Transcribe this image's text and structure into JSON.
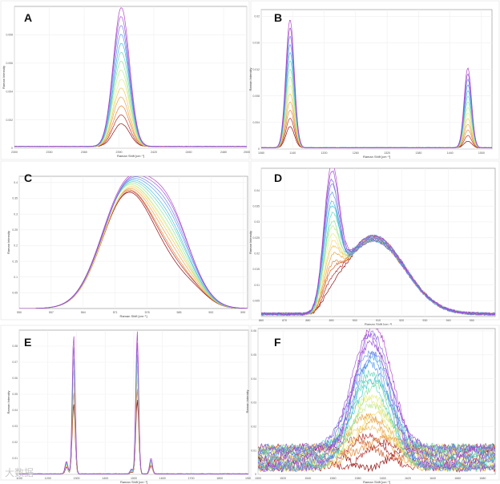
{
  "figure": {
    "palette": [
      "#8b0000",
      "#b22222",
      "#cd5c2c",
      "#e0802a",
      "#e8a040",
      "#f0c35a",
      "#f3dd74",
      "#e5ec7e",
      "#bfe98a",
      "#8fe0a0",
      "#5fd6b8",
      "#3ec8cf",
      "#41b5e0",
      "#5a98e8",
      "#6f7de6",
      "#8466e0",
      "#9a52d6",
      "#b03ec8"
    ],
    "watermark": "大数据"
  },
  "chart_data": [
    {
      "id": "panel-a",
      "label": "A",
      "type": "line",
      "xlabel": "Raman Shift [cm⁻¹]",
      "ylabel": "Raman Intensity",
      "xlim": [
        2300,
        2500
      ],
      "ylim": [
        0,
        0.01
      ],
      "xticks": [
        "2300",
        "2330",
        "2360",
        "2390",
        "2420",
        "2450",
        "2480",
        "2500"
      ],
      "yticks": [
        "0",
        "0.002",
        "0.004",
        "0.006",
        "0.008"
      ],
      "n_series": 14,
      "peaks": [
        {
          "center": 2392,
          "width": 7,
          "min": 0.0016,
          "max": 0.0098
        }
      ],
      "baseline": 0.00012
    },
    {
      "id": "panel-b",
      "label": "B",
      "type": "line",
      "xlabel": "Raman Shift [cm⁻¹]",
      "ylabel": "Raman Intensity",
      "xlim": [
        1080,
        1520
      ],
      "ylim": [
        0,
        0.021
      ],
      "xticks": [
        "1080",
        "1140",
        "1200",
        "1260",
        "1320",
        "1380",
        "1440",
        "1500"
      ],
      "yticks": [
        "0",
        "0.004",
        "0.008",
        "0.012",
        "0.016",
        "0.02"
      ],
      "n_series": 14,
      "peaks": [
        {
          "center": 1135,
          "width": 8,
          "min": 0.0032,
          "max": 0.0193
        },
        {
          "center": 1474,
          "width": 7,
          "min": 0.001,
          "max": 0.012
        }
      ],
      "baseline": 0.0002
    },
    {
      "id": "panel-c",
      "label": "C",
      "type": "line",
      "xlabel": "Raman Shift [cm⁻¹]",
      "ylabel": "Raman Intensity",
      "xlim": [
        550,
        600
      ],
      "ylim": [
        0,
        0.42
      ],
      "xticks": [
        "550",
        "557",
        "564",
        "571",
        "578",
        "585",
        "592",
        "599"
      ],
      "yticks": [
        "0.05",
        "0.1",
        "0.15",
        "0.2",
        "0.25",
        "0.3",
        "0.35",
        "0.4"
      ],
      "n_series": 14,
      "peaks": [
        {
          "center": 573.5,
          "width": 5.5,
          "min": 0.355,
          "max": 0.375
        },
        {
          "center": 583,
          "width": 4.8,
          "min": 0.09,
          "max": 0.265
        }
      ],
      "baseline": 0.0
    },
    {
      "id": "panel-d",
      "label": "D",
      "type": "line",
      "xlabel": "Raman Shift [cm⁻¹]",
      "ylabel": "Raman Intensity",
      "xlim": [
        860,
        960
      ],
      "ylim": [
        0,
        0.047
      ],
      "xticks": [
        "860",
        "870",
        "880",
        "890",
        "900",
        "910",
        "920",
        "930",
        "940",
        "950"
      ],
      "yticks": [
        "0.005",
        "0.01",
        "0.015",
        "0.02",
        "0.025",
        "0.03",
        "0.035",
        "0.04"
      ],
      "n_series": 18,
      "peaks": [
        {
          "center": 890,
          "width": 3.2,
          "min": 0.0,
          "max": 0.038
        }
      ],
      "broad": {
        "rise_start": 885,
        "center": 908,
        "height": 0.024,
        "tail": 0.006
      },
      "baseline": 0.0008
    },
    {
      "id": "panel-e",
      "label": "E",
      "type": "line",
      "xlabel": "Raman Shift [cm⁻¹]",
      "ylabel": "Raman Intensity",
      "xlim": [
        1100,
        1900
      ],
      "ylim": [
        0,
        0.09
      ],
      "xticks": [
        "1100",
        "1200",
        "1300",
        "1400",
        "1500",
        "1600",
        "1700",
        "1800",
        "1900"
      ],
      "yticks": [
        "0",
        "0.01",
        "0.02",
        "0.03",
        "0.04",
        "0.05",
        "0.06",
        "0.07",
        "0.08"
      ],
      "n_series": 7,
      "peaks": [
        {
          "center": 1290,
          "width": 5,
          "min": 0.044,
          "max": 0.087
        },
        {
          "center": 1265,
          "width": 5,
          "min": 0.004,
          "max": 0.008
        },
        {
          "center": 1512,
          "width": 5,
          "min": 0.046,
          "max": 0.089
        },
        {
          "center": 1492,
          "width": 5,
          "min": 0.001,
          "max": 0.003
        },
        {
          "center": 1560,
          "width": 5,
          "min": 0.005,
          "max": 0.01
        }
      ],
      "baseline": 0.0003
    },
    {
      "id": "panel-f",
      "label": "F",
      "type": "line",
      "xlabel": "Raman Shift [cm⁻¹]",
      "ylabel": "Raman Intensity",
      "xlim": [
        1500,
        1690
      ],
      "ylim": [
        0,
        0.061
      ],
      "xticks": [
        "1500",
        "1520",
        "1540",
        "1560",
        "1580",
        "1600",
        "1620",
        "1640",
        "1660",
        "1680"
      ],
      "yticks": [
        "0",
        "0.01",
        "0.02",
        "0.03",
        "0.04",
        "0.05",
        "0.06"
      ],
      "n_series": 24,
      "peaks": [
        {
          "center": 1591,
          "width": 15,
          "min": 0.0,
          "max": 0.055
        }
      ],
      "baseline": 0.007,
      "noisy": true
    }
  ]
}
